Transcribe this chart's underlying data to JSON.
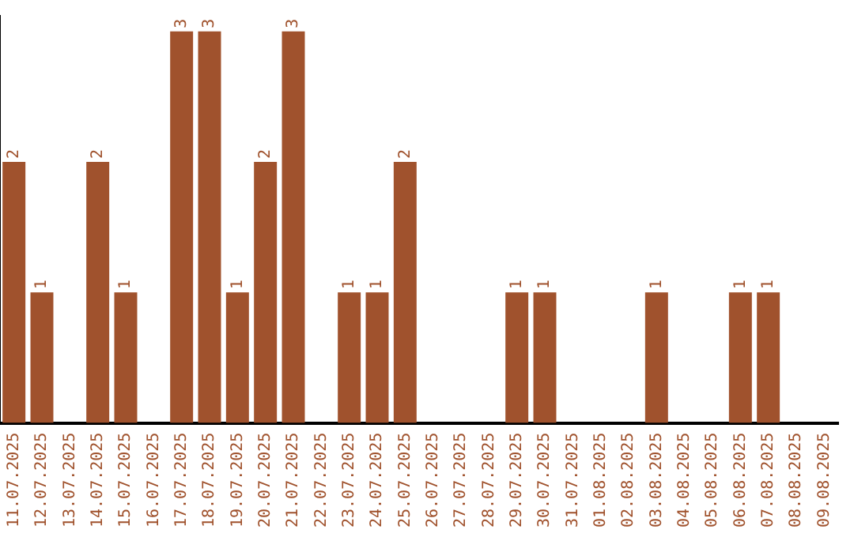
{
  "chart_data": {
    "type": "bar",
    "categories": [
      "11.07.2025",
      "12.07.2025",
      "13.07.2025",
      "14.07.2025",
      "15.07.2025",
      "16.07.2025",
      "17.07.2025",
      "18.07.2025",
      "19.07.2025",
      "20.07.2025",
      "21.07.2025",
      "22.07.2025",
      "23.07.2025",
      "24.07.2025",
      "25.07.2025",
      "26.07.2025",
      "27.07.2025",
      "28.07.2025",
      "29.07.2025",
      "30.07.2025",
      "31.07.2025",
      "01.08.2025",
      "02.08.2025",
      "03.08.2025",
      "04.08.2025",
      "05.08.2025",
      "06.08.2025",
      "07.08.2025",
      "08.08.2025",
      "09.08.2025"
    ],
    "values": [
      2,
      1,
      0,
      2,
      1,
      0,
      3,
      3,
      1,
      2,
      3,
      0,
      1,
      1,
      2,
      0,
      0,
      0,
      1,
      1,
      0,
      0,
      0,
      1,
      0,
      0,
      1,
      1,
      0,
      0
    ],
    "value_labels": [
      "2",
      "1",
      null,
      "2",
      "1",
      null,
      "3",
      "3",
      "1",
      "2",
      "3",
      null,
      "1",
      "1",
      "2",
      null,
      null,
      null,
      "1",
      "1",
      null,
      null,
      null,
      "1",
      null,
      null,
      "1",
      "1",
      null,
      null
    ],
    "color": "#a0522d",
    "ylim": [
      0,
      3.12
    ],
    "tick_labels": "x",
    "grid": false,
    "legend": false
  }
}
